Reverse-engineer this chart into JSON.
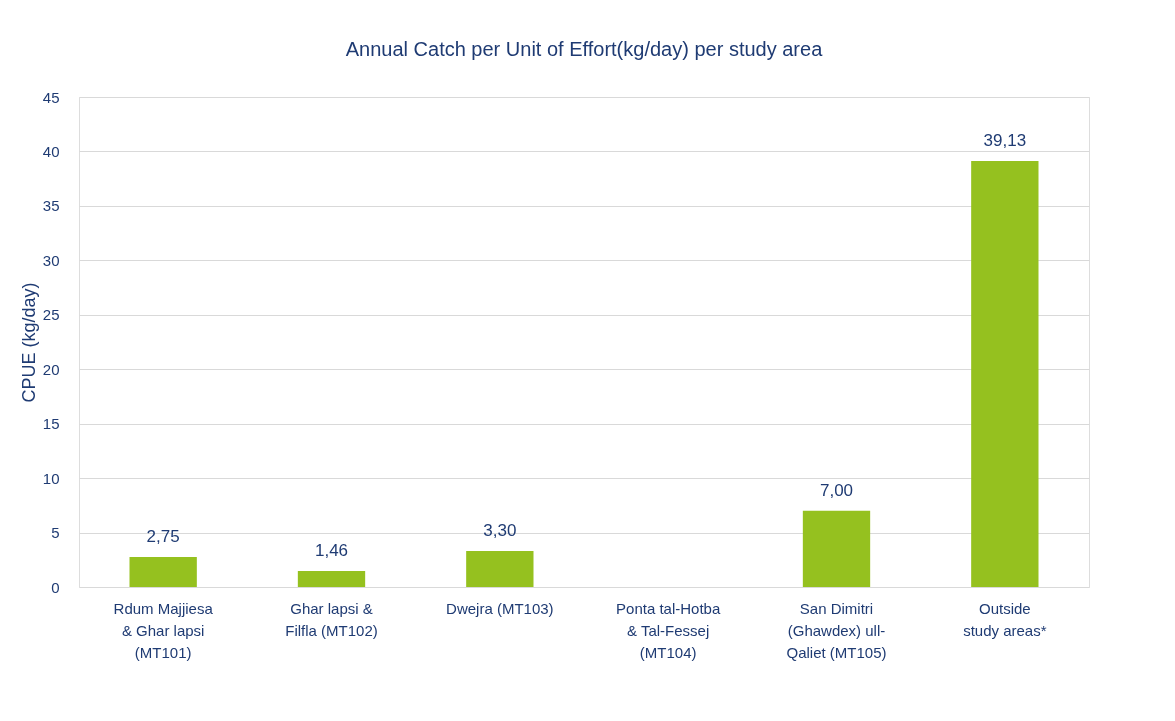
{
  "chart_data": {
    "type": "bar",
    "title": "Annual Catch per Unit of Effort(kg/day) per study area",
    "ylabel": "CPUE (kg/day)",
    "categories": [
      "Rdum Majjiesa\n& Ghar lapsi\n(MT101)",
      "Ghar lapsi &\nFilfla (MT102)",
      "Dwejra (MT103)",
      "Ponta tal-Hotba\n& Tal-Fessej\n(MT104)",
      "San Dimitri\n(Ghawdex) ull-\nQaliet (MT105)",
      "Outside\nstudy areas*"
    ],
    "values": [
      2.75,
      1.46,
      3.3,
      null,
      7.0,
      39.13
    ],
    "value_labels": [
      "2,75",
      "1,46",
      "3,30",
      null,
      "7,00",
      "39,13"
    ],
    "color": "#95c11f",
    "ylim": [
      0,
      45
    ],
    "yticks": [
      0,
      5,
      10,
      15,
      20,
      25,
      30,
      35,
      40,
      45
    ],
    "grid": "y"
  }
}
